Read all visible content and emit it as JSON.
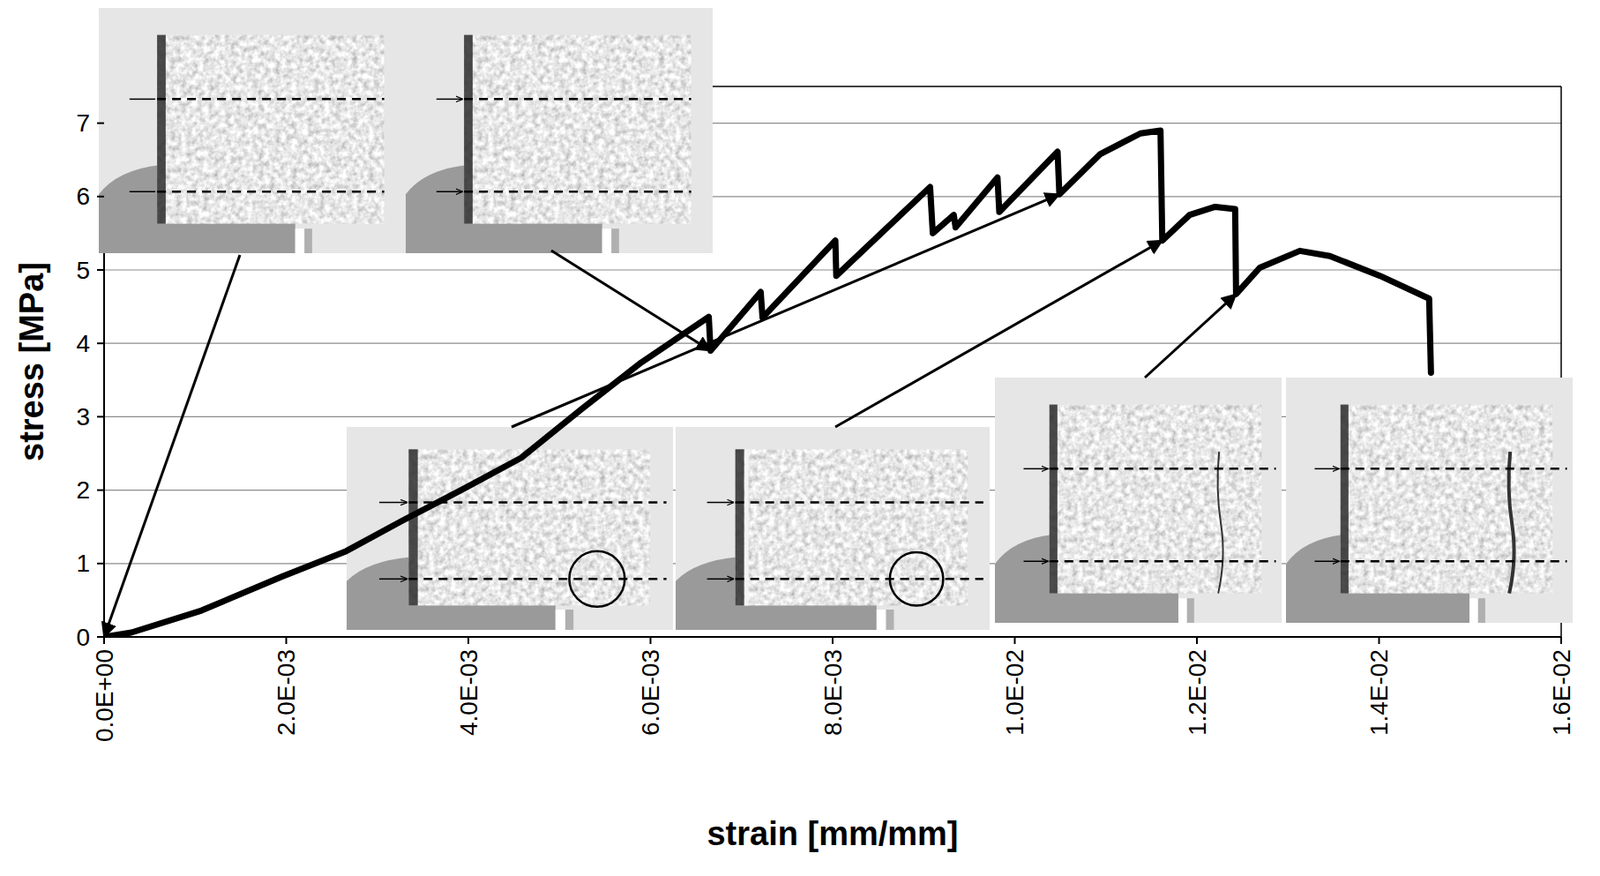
{
  "chart_data": {
    "type": "line",
    "x_label": "strain [mm/mm]",
    "y_label": "stress [MPa]",
    "color": "#000000",
    "grid": true,
    "xlim": [
      0,
      0.016
    ],
    "ylim": [
      0,
      7.5
    ],
    "xticks": [
      {
        "value": 0,
        "label": "0.0E+00"
      },
      {
        "value": 0.002,
        "label": "2.0E-03"
      },
      {
        "value": 0.004,
        "label": "4.0E-03"
      },
      {
        "value": 0.006,
        "label": "6.0E-03"
      },
      {
        "value": 0.008,
        "label": "8.0E-03"
      },
      {
        "value": 0.01,
        "label": "1.0E-02"
      },
      {
        "value": 0.012,
        "label": "1.2E-02"
      },
      {
        "value": 0.014,
        "label": "1.4E-02"
      },
      {
        "value": 0.016,
        "label": "1.6E-02"
      }
    ],
    "yticks": [
      0,
      1,
      2,
      3,
      4,
      5,
      6,
      7
    ],
    "x": [
      0,
      0.0003,
      0.00107,
      0.00195,
      0.00266,
      0.00327,
      0.00392,
      0.00458,
      0.00524,
      0.0059,
      0.00664,
      0.00666,
      0.00721,
      0.00723,
      0.00803,
      0.00804,
      0.00907,
      0.0091,
      0.00933,
      0.00935,
      0.00981,
      0.00983,
      0.01047,
      0.01049,
      0.01094,
      0.01138,
      0.0116,
      0.01162,
      0.01192,
      0.0122,
      0.01242,
      0.01243,
      0.01269,
      0.01313,
      0.01346,
      0.01401,
      0.01455,
      0.01457
    ],
    "values": [
      0,
      0.06,
      0.36,
      0.82,
      1.17,
      1.58,
      2.0,
      2.44,
      3.1,
      3.74,
      4.36,
      3.9,
      4.7,
      4.35,
      5.4,
      4.92,
      6.13,
      5.5,
      5.75,
      5.58,
      6.26,
      5.79,
      6.61,
      6.03,
      6.58,
      6.86,
      6.9,
      5.4,
      5.75,
      5.86,
      5.83,
      4.67,
      5.03,
      5.26,
      5.19,
      4.92,
      4.61,
      3.6
    ]
  }
}
